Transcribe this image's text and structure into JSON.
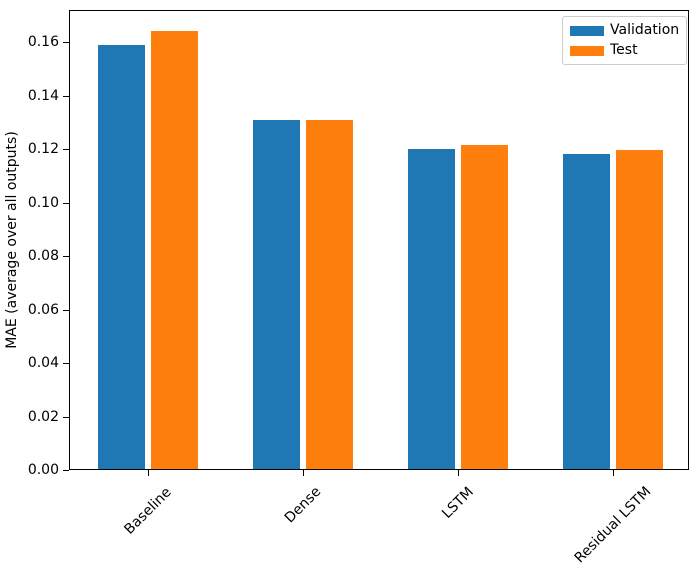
{
  "chart_data": {
    "type": "bar",
    "title": "",
    "xlabel": "",
    "ylabel": "MAE (average over all outputs)",
    "categories": [
      "Baseline",
      "Dense",
      "LSTM",
      "Residual LSTM"
    ],
    "series": [
      {
        "name": "Validation",
        "color": "#1f77b4",
        "values": [
          0.159,
          0.131,
          0.12,
          0.118
        ]
      },
      {
        "name": "Test",
        "color": "#ff7f0e",
        "values": [
          0.164,
          0.131,
          0.1215,
          0.1195
        ]
      }
    ],
    "ylim": [
      0,
      0.172
    ],
    "yticks": [
      0.0,
      0.02,
      0.04,
      0.06,
      0.08,
      0.1,
      0.12,
      0.14,
      0.16
    ],
    "ytick_labels": [
      "0.00",
      "0.02",
      "0.04",
      "0.06",
      "0.08",
      "0.10",
      "0.12",
      "0.14",
      "0.16"
    ],
    "xtick_rotation": 45,
    "grid": false,
    "legend": {
      "position": "upper right",
      "entries": [
        "Validation",
        "Test"
      ],
      "border_color": "#cccccc",
      "background": "#ffffff"
    },
    "axis_color": "#000000",
    "plot_background": "#ffffff"
  }
}
